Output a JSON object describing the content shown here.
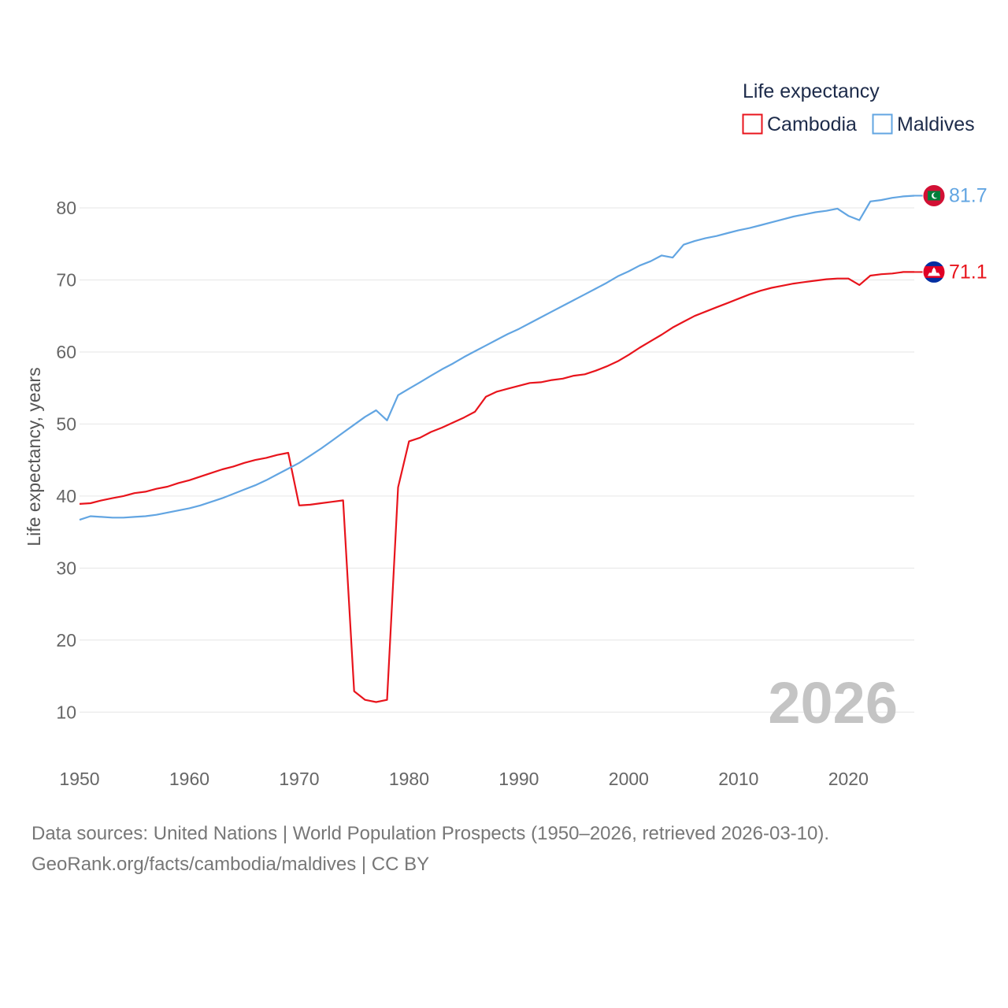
{
  "chart_data": {
    "type": "line",
    "legend_title": "Life expectancy",
    "ylabel": "Life expectancy, years",
    "xlabel": "",
    "xlim": [
      1950,
      2026
    ],
    "ylim": [
      5,
      87
    ],
    "x_ticks": [
      1950,
      1960,
      1970,
      1980,
      1990,
      2000,
      2010,
      2020
    ],
    "y_ticks": [
      10,
      20,
      30,
      40,
      50,
      60,
      70,
      80
    ],
    "current_year": "2026",
    "x": [
      1950,
      1951,
      1952,
      1953,
      1954,
      1955,
      1956,
      1957,
      1958,
      1959,
      1960,
      1961,
      1962,
      1963,
      1964,
      1965,
      1966,
      1967,
      1968,
      1969,
      1970,
      1971,
      1972,
      1973,
      1974,
      1975,
      1976,
      1977,
      1978,
      1979,
      1980,
      1981,
      1982,
      1983,
      1984,
      1985,
      1986,
      1987,
      1988,
      1989,
      1990,
      1991,
      1992,
      1993,
      1994,
      1995,
      1996,
      1997,
      1998,
      1999,
      2000,
      2001,
      2002,
      2003,
      2004,
      2005,
      2006,
      2007,
      2008,
      2009,
      2010,
      2011,
      2012,
      2013,
      2014,
      2015,
      2016,
      2017,
      2018,
      2019,
      2020,
      2021,
      2022,
      2023,
      2024,
      2025,
      2026
    ],
    "series": [
      {
        "name": "Cambodia",
        "color": "#e8141c",
        "end_label": "71.1",
        "flag": "cambodia-flag-icon",
        "values": [
          38.9,
          39.0,
          39.4,
          39.7,
          40.0,
          40.4,
          40.6,
          41.0,
          41.3,
          41.8,
          42.2,
          42.7,
          43.2,
          43.7,
          44.1,
          44.6,
          45.0,
          45.3,
          45.7,
          46.0,
          38.7,
          38.8,
          39.0,
          39.2,
          39.4,
          12.9,
          11.7,
          11.4,
          11.7,
          41.2,
          47.6,
          48.1,
          48.9,
          49.5,
          50.2,
          50.9,
          51.7,
          53.8,
          54.5,
          54.9,
          55.3,
          55.7,
          55.8,
          56.1,
          56.3,
          56.7,
          56.9,
          57.4,
          58.0,
          58.7,
          59.6,
          60.6,
          61.5,
          62.4,
          63.4,
          64.2,
          65.0,
          65.6,
          66.2,
          66.8,
          67.4,
          68.0,
          68.5,
          68.9,
          69.2,
          69.5,
          69.7,
          69.9,
          70.1,
          70.2,
          70.2,
          69.3,
          70.6,
          70.8,
          70.9,
          71.1,
          71.1
        ]
      },
      {
        "name": "Maldives",
        "color": "#62a5e2",
        "end_label": "81.7",
        "flag": "maldives-flag-icon",
        "values": [
          36.7,
          37.2,
          37.1,
          37.0,
          37.0,
          37.1,
          37.2,
          37.4,
          37.7,
          38.0,
          38.3,
          38.7,
          39.2,
          39.7,
          40.3,
          40.9,
          41.5,
          42.2,
          43.0,
          43.8,
          44.6,
          45.6,
          46.6,
          47.7,
          48.8,
          49.9,
          51.0,
          51.9,
          50.5,
          54.0,
          54.9,
          55.8,
          56.7,
          57.6,
          58.4,
          59.3,
          60.1,
          60.9,
          61.7,
          62.5,
          63.2,
          64.0,
          64.8,
          65.6,
          66.4,
          67.2,
          68.0,
          68.8,
          69.6,
          70.5,
          71.2,
          72.0,
          72.6,
          73.4,
          73.1,
          74.9,
          75.4,
          75.8,
          76.1,
          76.5,
          76.9,
          77.2,
          77.6,
          78.0,
          78.4,
          78.8,
          79.1,
          79.4,
          79.6,
          79.9,
          78.9,
          78.3,
          80.9,
          81.1,
          81.4,
          81.6,
          81.7
        ]
      }
    ]
  },
  "footer": {
    "source_line": "Data sources: United Nations | World Population Prospects (1950–2026, retrieved 2026-03-10).",
    "credit_line": "GeoRank.org/facts/cambodia/maldives | CC BY"
  }
}
